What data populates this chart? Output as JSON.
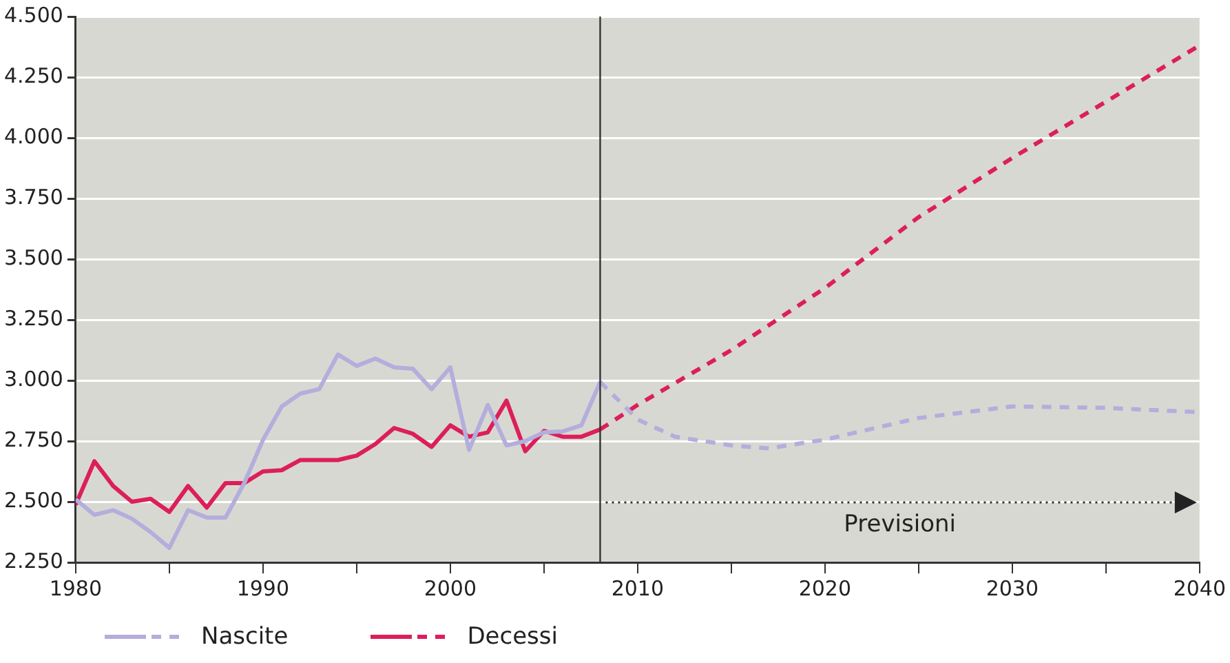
{
  "chart_data": {
    "type": "line",
    "xlim": [
      1980,
      2040
    ],
    "xticks": [
      1980,
      {
        "value": 1985,
        "label": null
      },
      1990,
      {
        "value": 1995,
        "label": null
      },
      2000,
      {
        "value": 2005,
        "label": null
      },
      2010,
      {
        "value": 2015,
        "label": null
      },
      2020,
      {
        "value": 2025,
        "label": null
      },
      2030,
      {
        "value": 2035,
        "label": null
      },
      2040
    ],
    "ylim": [
      2250,
      4500
    ],
    "yticks": [
      {
        "value": 2250,
        "label": "2.250"
      },
      {
        "value": 2500,
        "label": "2.500"
      },
      {
        "value": 2750,
        "label": "2.750"
      },
      {
        "value": 3000,
        "label": "3.000"
      },
      {
        "value": 3250,
        "label": "3.250"
      },
      {
        "value": 3500,
        "label": "3.500"
      },
      {
        "value": 3750,
        "label": "3.750"
      },
      {
        "value": 4000,
        "label": "4.000"
      },
      {
        "value": 4250,
        "label": "4.250"
      },
      {
        "value": 4500,
        "label": "4.500"
      }
    ],
    "grid": "y",
    "legend": "bottom",
    "marker": "none",
    "series": [
      {
        "name": "Nascite",
        "color": "#b3aedb",
        "line_style": "solid",
        "x": [
          1980,
          1981,
          1982,
          1983,
          1984,
          1985,
          1986,
          1987,
          1988,
          1989,
          1990,
          1991,
          1992,
          1993,
          1994,
          1995,
          1996,
          1997,
          1998,
          1999,
          2000,
          2001,
          2002,
          2003,
          2004,
          2005,
          2006,
          2007,
          2008
        ],
        "values": [
          2510,
          2446,
          2465,
          2430,
          2375,
          2310,
          2465,
          2435,
          2435,
          2577,
          2755,
          2893,
          2946,
          2964,
          3107,
          3060,
          3090,
          3054,
          3048,
          2964,
          3054,
          2714,
          2899,
          2732,
          2750,
          2786,
          2790,
          2815,
          2994
        ]
      },
      {
        "color": "#b3aedb",
        "line_style": "dashed",
        "x": [
          2008,
          2010,
          2012,
          2015,
          2017,
          2020,
          2025,
          2030,
          2035,
          2040
        ],
        "values": [
          2994,
          2839,
          2768,
          2732,
          2720,
          2756,
          2845,
          2893,
          2887,
          2869
        ]
      },
      {
        "name": "Decessi",
        "color": "#dc1f5a",
        "line_style": "solid",
        "x": [
          1980,
          1981,
          1982,
          1983,
          1984,
          1985,
          1986,
          1987,
          1988,
          1989,
          1990,
          1991,
          1992,
          1993,
          1994,
          1995,
          1996,
          1997,
          1998,
          1999,
          2000,
          2001,
          2002,
          2003,
          2004,
          2005,
          2006,
          2007,
          2008
        ],
        "values": [
          2488,
          2667,
          2565,
          2500,
          2512,
          2458,
          2565,
          2476,
          2577,
          2577,
          2625,
          2630,
          2672,
          2672,
          2672,
          2690,
          2738,
          2804,
          2780,
          2726,
          2815,
          2768,
          2786,
          2917,
          2708,
          2792,
          2768,
          2768,
          2798
        ]
      },
      {
        "color": "#dc1f5a",
        "line_style": "dashed",
        "x": [
          2008,
          2010,
          2015,
          2020,
          2025,
          2030,
          2035,
          2040
        ],
        "values": [
          2798,
          2899,
          3125,
          3381,
          3673,
          3917,
          4149,
          4381
        ]
      }
    ],
    "ref_lines": [
      {
        "axis": "x",
        "value": 2008,
        "color": "#333333"
      }
    ],
    "annotations": [
      "Previsioni"
    ]
  }
}
